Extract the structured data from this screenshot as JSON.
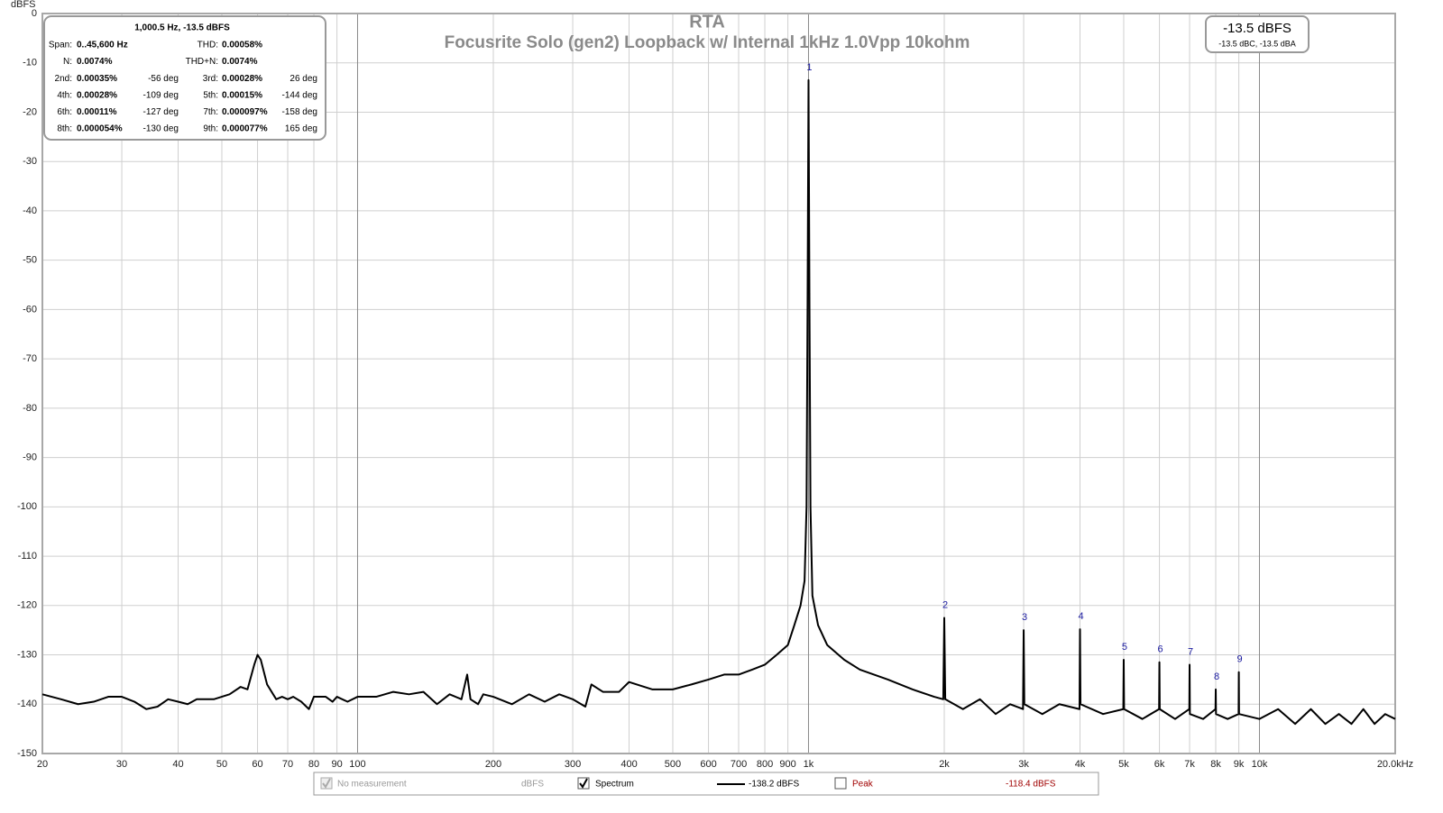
{
  "chart_data": {
    "type": "line",
    "title": "RTA",
    "subtitle": "Focusrite Solo (gen2) Loopback w/ Internal 1kHz 1.0Vpp 10kohm",
    "y_label": "dBFS",
    "log_x": true,
    "grid": true,
    "xlim": [
      20,
      20000
    ],
    "ylim": [
      -150,
      0
    ],
    "yticks": [
      0,
      -10,
      -20,
      -30,
      -40,
      -50,
      -60,
      -70,
      -80,
      -90,
      -100,
      -110,
      -120,
      -130,
      -140,
      -150
    ],
    "xticks": [
      20,
      30,
      40,
      50,
      60,
      70,
      80,
      90,
      100,
      200,
      300,
      400,
      500,
      600,
      700,
      800,
      900,
      {
        "value": 1000,
        "label": "1k"
      },
      {
        "value": 2000,
        "label": "2k"
      },
      {
        "value": 3000,
        "label": "3k"
      },
      {
        "value": 4000,
        "label": "4k"
      },
      {
        "value": 5000,
        "label": "5k"
      },
      {
        "value": 6000,
        "label": "6k"
      },
      {
        "value": 7000,
        "label": "7k"
      },
      {
        "value": 8000,
        "label": "8k"
      },
      {
        "value": 9000,
        "label": "9k"
      },
      {
        "value": 10000,
        "label": "10k"
      },
      {
        "value": 20000,
        "label": "20.0kHz"
      }
    ],
    "series": [
      {
        "name": "Spectrum",
        "color": "#000000",
        "reading": "-138.2 dBFS",
        "checked": true,
        "x": [
          20,
          22,
          24,
          26,
          28,
          30,
          32,
          34,
          36,
          38,
          40,
          42,
          44,
          48,
          52,
          55,
          57,
          59,
          60,
          61,
          63,
          66,
          68,
          70,
          72,
          75,
          78,
          80,
          85,
          88,
          90,
          95,
          100,
          110,
          120,
          130,
          140,
          150,
          160,
          170,
          175,
          178,
          185,
          190,
          200,
          220,
          240,
          260,
          280,
          300,
          320,
          330,
          350,
          380,
          400,
          450,
          500,
          550,
          600,
          650,
          700,
          750,
          800,
          850,
          900,
          930,
          960,
          980,
          990,
          995,
          1000,
          1005,
          1010,
          1020,
          1050,
          1100,
          1200,
          1300,
          1500,
          1700,
          1900,
          1990,
          2000,
          2010,
          2200,
          2400,
          2600,
          2800,
          2990,
          3000,
          3010,
          3300,
          3600,
          3990,
          4000,
          4010,
          4500,
          4990,
          5000,
          5010,
          5500,
          5990,
          6000,
          6010,
          6500,
          6990,
          7000,
          7010,
          7500,
          7990,
          8000,
          8010,
          8500,
          8990,
          9000,
          9010,
          10000,
          11000,
          12000,
          13000,
          14000,
          15000,
          16000,
          17000,
          18000,
          19000,
          20000
        ],
        "values": [
          -138,
          -139,
          -140,
          -139.5,
          -138.5,
          -138.5,
          -139.5,
          -141,
          -140.5,
          -139,
          -139.5,
          -140,
          -139,
          -139,
          -138,
          -136.5,
          -137,
          -132,
          -130,
          -131,
          -136,
          -139,
          -138.5,
          -139,
          -138.5,
          -139.5,
          -141,
          -138.5,
          -138.5,
          -139.5,
          -138.5,
          -139.5,
          -138.5,
          -138.5,
          -137.5,
          -138,
          -137.5,
          -140,
          -138,
          -139,
          -134,
          -139,
          -140,
          -138,
          -138.5,
          -140,
          -138,
          -139.5,
          -138,
          -139,
          -140.5,
          -136,
          -137.5,
          -137.5,
          -135.5,
          -137,
          -137,
          -136,
          -135,
          -134,
          -134,
          -133,
          -132,
          -130,
          -128,
          -124,
          -120,
          -115,
          -100,
          -60,
          -13.5,
          -60,
          -100,
          -118,
          -124,
          -128,
          -131,
          -133,
          -135,
          -137,
          -138.5,
          -139,
          -122.5,
          -139,
          -141,
          -139,
          -142,
          -140,
          -141,
          -125,
          -140,
          -142,
          -140,
          -141,
          -124.8,
          -140,
          -142,
          -141,
          -131,
          -141,
          -143,
          -141,
          -131.5,
          -141,
          -143,
          -141,
          -132,
          -142,
          -143,
          -141,
          -137,
          -142,
          -143,
          -142,
          -133.5,
          -142,
          -143,
          -141,
          -144,
          -141,
          -144,
          -142,
          -144,
          -141,
          -144,
          -142,
          -143
        ]
      }
    ],
    "markers": [
      {
        "label": "1",
        "x": 1000,
        "value": -13.5
      },
      {
        "label": "2",
        "x": 2000,
        "value": -122.5
      },
      {
        "label": "3",
        "x": 3000,
        "value": -125
      },
      {
        "label": "4",
        "x": 4000,
        "value": -124.8
      },
      {
        "label": "5",
        "x": 5000,
        "value": -131
      },
      {
        "label": "6",
        "x": 6000,
        "value": -131.5
      },
      {
        "label": "7",
        "x": 7000,
        "value": -132
      },
      {
        "label": "8",
        "x": 8000,
        "value": -137
      },
      {
        "label": "9",
        "x": 9000,
        "value": -133.5
      }
    ],
    "traces": [
      {
        "name": "No measurement",
        "reading": "dBFS",
        "checked": true,
        "disabled": true,
        "color": "#999999"
      },
      {
        "name": "Peak",
        "reading": "-118.4 dBFS",
        "checked": false,
        "disabled": false,
        "color": "#a00000"
      }
    ],
    "readout": {
      "main": "-13.5 dBFS",
      "sub": "-13.5 dBC, -13.5 dBA"
    },
    "info_box": {
      "header": "1,000.5 Hz, -13.5 dBFS",
      "rows": [
        [
          {
            "label": "Span:",
            "value": "0..45,600 Hz"
          },
          {
            "label": "THD:",
            "value": "0.00058%"
          }
        ],
        [
          {
            "label": "N:",
            "value": "0.0074%"
          },
          {
            "label": "THD+N:",
            "value": "0.0074%"
          }
        ],
        [
          {
            "label": "2nd:",
            "value": "0.00035%",
            "phase": "-56 deg"
          },
          {
            "label": "3rd:",
            "value": "0.00028%",
            "phase": "26 deg"
          }
        ],
        [
          {
            "label": "4th:",
            "value": "0.00028%",
            "phase": "-109 deg"
          },
          {
            "label": "5th:",
            "value": "0.00015%",
            "phase": "-144 deg"
          }
        ],
        [
          {
            "label": "6th:",
            "value": "0.00011%",
            "phase": "-127 deg"
          },
          {
            "label": "7th:",
            "value": "0.000097%",
            "phase": "-158 deg"
          }
        ],
        [
          {
            "label": "8th:",
            "value": "0.000054%",
            "phase": "-130 deg"
          },
          {
            "label": "9th:",
            "value": "0.000077%",
            "phase": "165 deg"
          }
        ]
      ]
    }
  }
}
